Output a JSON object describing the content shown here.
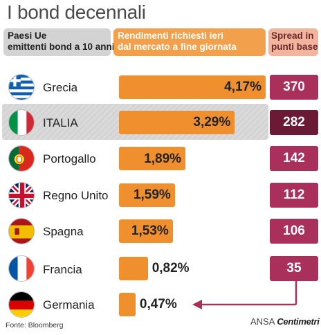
{
  "title": "I bond decennali",
  "headers": {
    "countries_line1": "Paesi Ue",
    "countries_line2": "emittenti bond a 10 anni",
    "yield_line1": "Rendimenti richiesti ieri",
    "yield_line2": "dal mercato a fine giornata",
    "spread_line1": "Spread in",
    "spread_line2": "punti base"
  },
  "rows": [
    {
      "country": "Grecia",
      "yield": "4,17%",
      "spread": "370",
      "flag": "greece-flag-icon"
    },
    {
      "country": "ITALIA",
      "yield": "3,29%",
      "spread": "282",
      "flag": "italy-flag-icon"
    },
    {
      "country": "Portogallo",
      "yield": "1,89%",
      "spread": "142",
      "flag": "portugal-flag-icon"
    },
    {
      "country": "Regno Unito",
      "yield": "1,59%",
      "spread": "112",
      "flag": "uk-flag-icon"
    },
    {
      "country": "Spagna",
      "yield": "1,53%",
      "spread": "106",
      "flag": "spain-flag-icon"
    },
    {
      "country": "Francia",
      "yield": "0,82%",
      "spread": "35",
      "flag": "france-flag-icon"
    },
    {
      "country": "Germania",
      "yield": "0,47%",
      "spread": "",
      "flag": "germany-flag-icon"
    }
  ],
  "source": "Fonte: Bloomberg",
  "logo": {
    "ansa": "ANSA",
    "brand": "Centimetri"
  },
  "colors": {
    "bar": "#ef8f2e",
    "spread": "#a8305a",
    "spread_highlight": "#6a1a34",
    "highlight_row": "#d4d4d4"
  },
  "chart_data": {
    "type": "bar",
    "orientation": "horizontal",
    "title": "I bond decennali",
    "categories": [
      "Grecia",
      "ITALIA",
      "Portogallo",
      "Regno Unito",
      "Spagna",
      "Francia",
      "Germania"
    ],
    "series": [
      {
        "name": "Rendimenti richiesti ieri dal mercato a fine giornata",
        "values": [
          4.17,
          3.29,
          1.89,
          1.59,
          1.53,
          0.82,
          0.47
        ]
      },
      {
        "name": "Spread in punti base",
        "values": [
          370,
          282,
          142,
          112,
          106,
          35,
          null
        ]
      }
    ],
    "highlight": "ITALIA",
    "xlim": [
      0,
      4.17
    ]
  }
}
